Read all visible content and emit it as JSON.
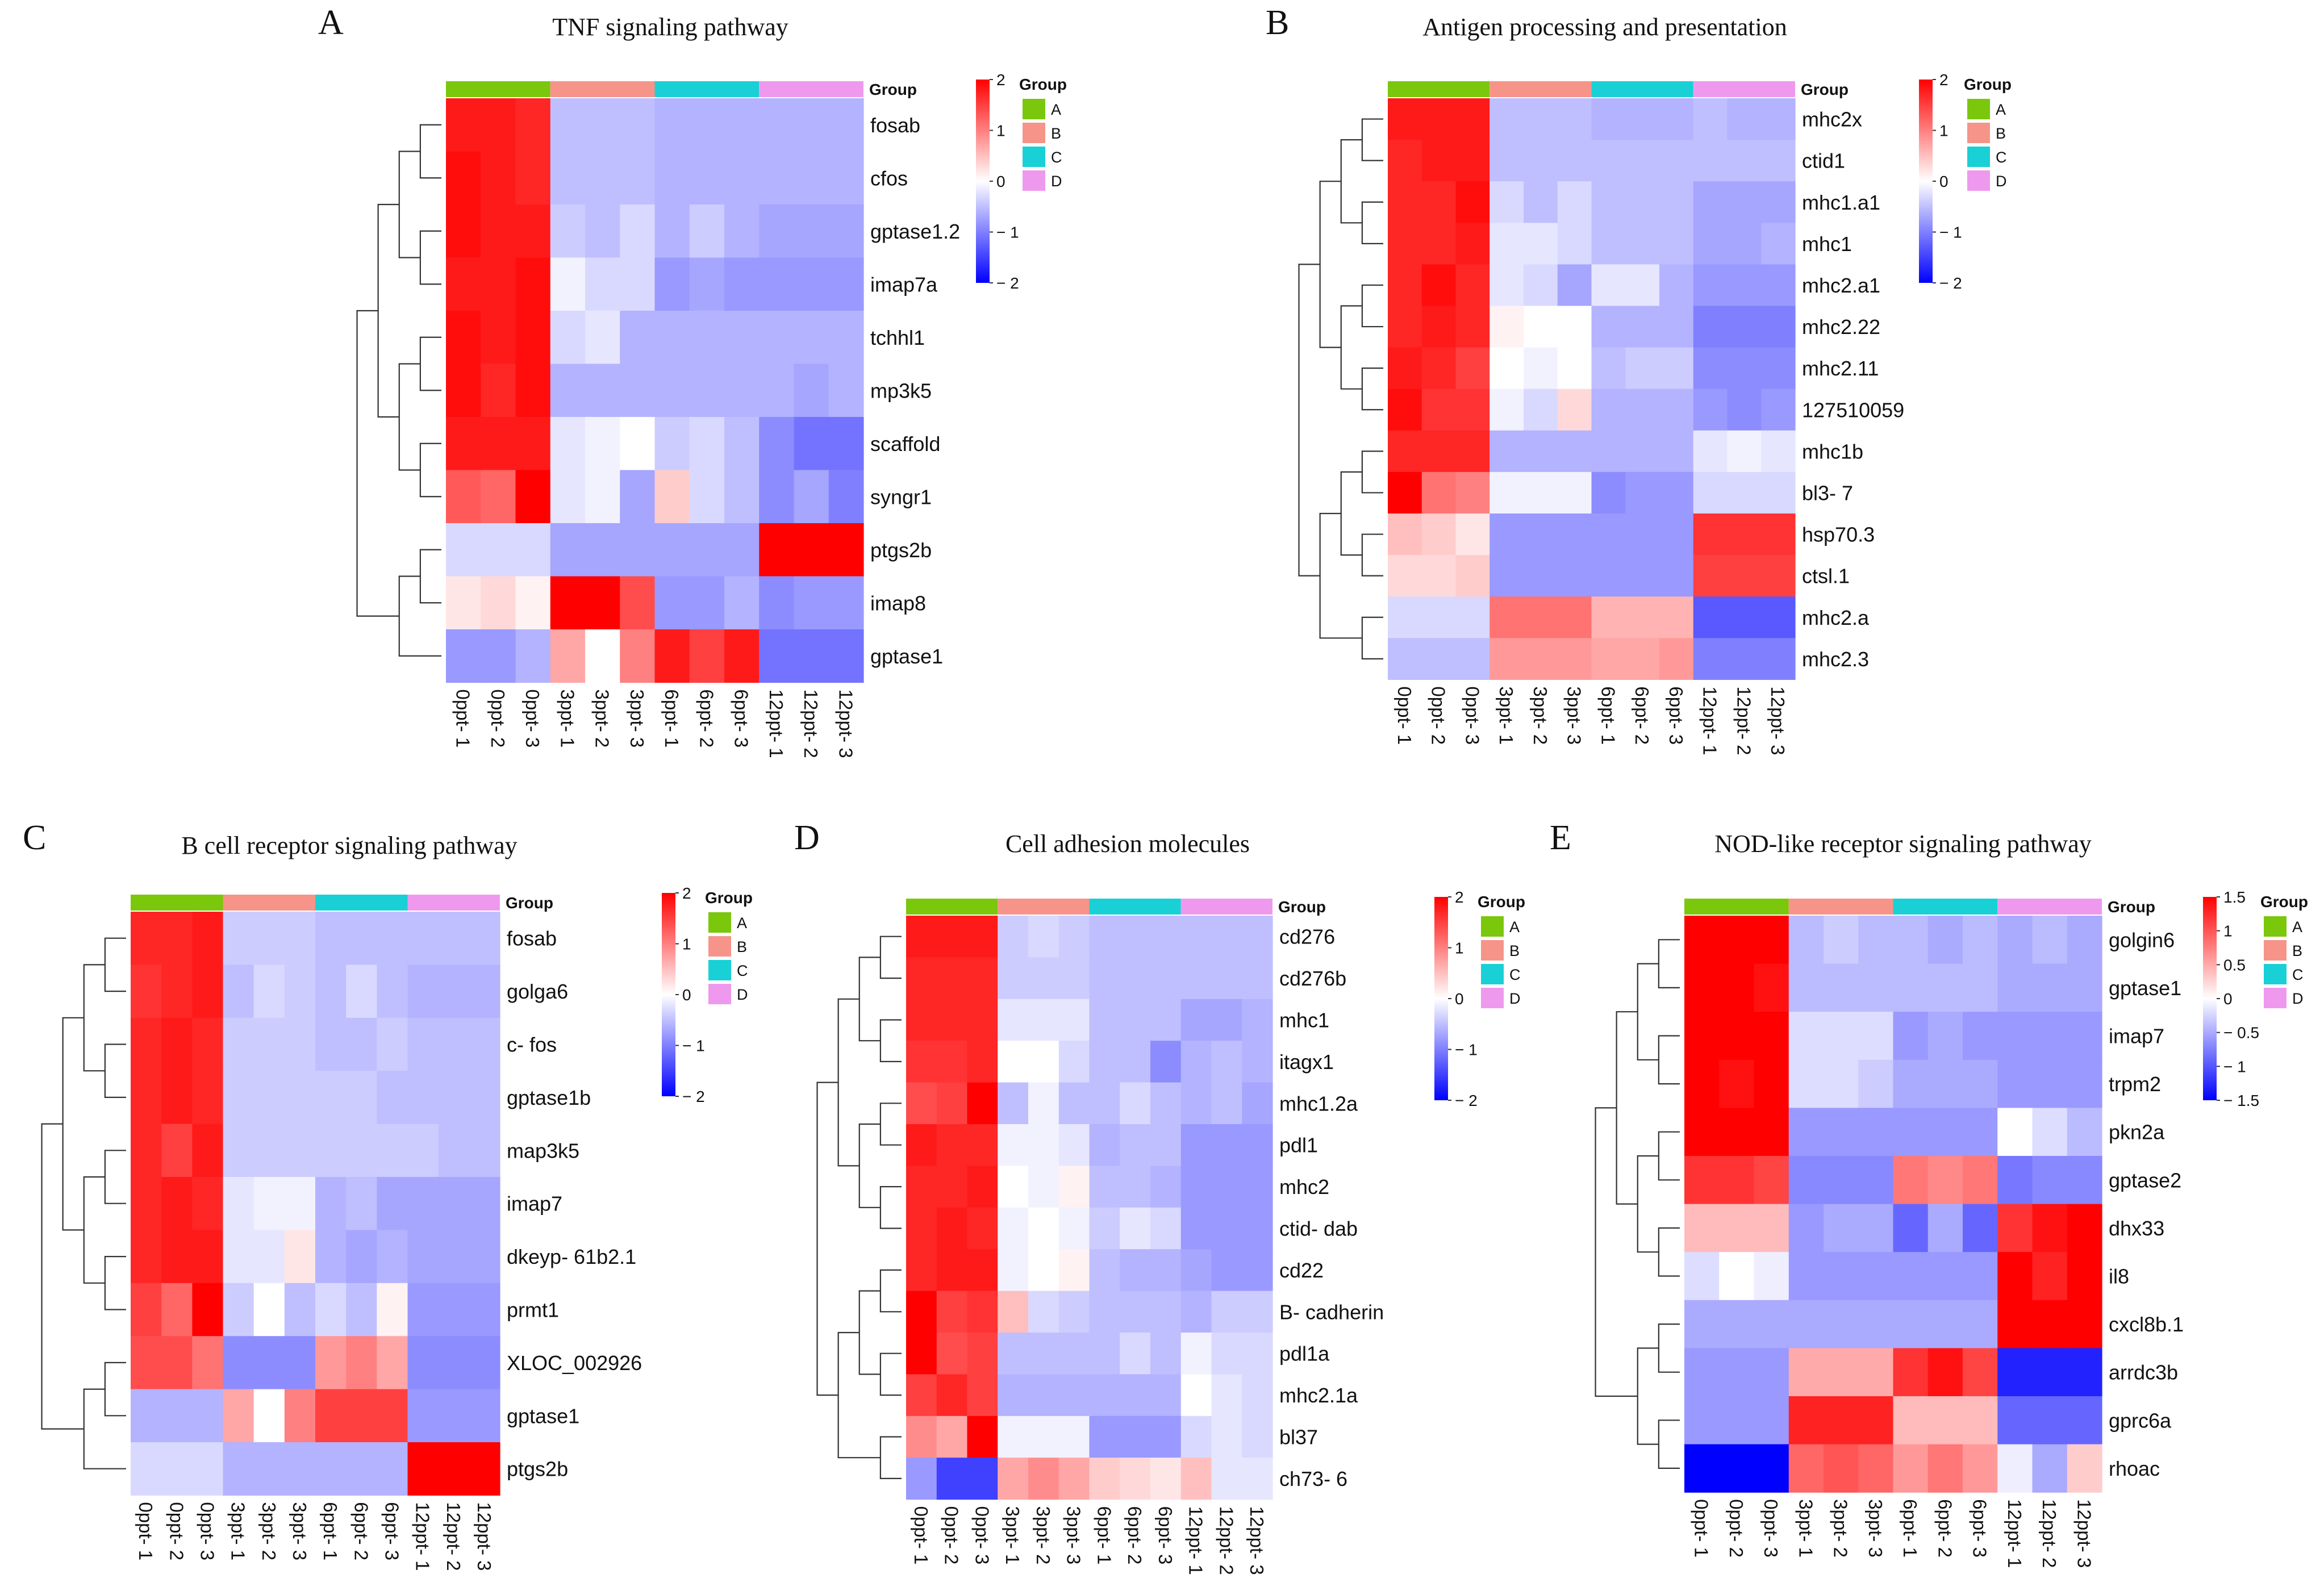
{
  "figure": {
    "samples": [
      "0ppt- 1",
      "0ppt- 2",
      "0ppt- 3",
      "3ppt- 1",
      "3ppt- 2",
      "3ppt- 3",
      "6ppt- 1",
      "6ppt- 2",
      "6ppt- 3",
      "12ppt- 1",
      "12ppt- 2",
      "12ppt- 3"
    ],
    "groups": [
      {
        "label": "A",
        "color": "#7ac70c"
      },
      {
        "label": "B",
        "color": "#f69489"
      },
      {
        "label": "C",
        "color": "#19d0d6"
      },
      {
        "label": "D",
        "color": "#ee99ee"
      }
    ],
    "group_header": "Group",
    "legend_title": "Group",
    "color_scale": {
      "low": "#0000ff",
      "mid": "#ffffff",
      "high": "#ff0000"
    }
  },
  "chart_data": [
    {
      "panel": "A",
      "type": "heatmap",
      "title": "TNF signaling pathway",
      "rows": [
        "fosab",
        "cfos",
        "gptase1.2",
        "imap7a",
        "tchhl1",
        "mp3k5",
        "scaffold",
        "syngr1",
        "ptgs2b",
        "imap8",
        "gptase1"
      ],
      "scale_range": [
        -2,
        2
      ],
      "ticks": [
        2,
        1,
        0,
        -1,
        -2
      ],
      "tick_labels": [
        "2",
        "1",
        "0",
        "− 1",
        "− 2"
      ],
      "values": [
        [
          1.8,
          1.8,
          1.7,
          -0.5,
          -0.5,
          -0.5,
          -0.6,
          -0.6,
          -0.6,
          -0.6,
          -0.6,
          -0.6
        ],
        [
          1.9,
          1.8,
          1.7,
          -0.5,
          -0.5,
          -0.5,
          -0.6,
          -0.6,
          -0.6,
          -0.6,
          -0.6,
          -0.6
        ],
        [
          1.9,
          1.8,
          1.8,
          -0.4,
          -0.5,
          -0.3,
          -0.6,
          -0.4,
          -0.6,
          -0.7,
          -0.7,
          -0.7
        ],
        [
          1.8,
          1.8,
          1.9,
          -0.1,
          -0.3,
          -0.3,
          -0.8,
          -0.7,
          -0.8,
          -0.8,
          -0.8,
          -0.8
        ],
        [
          1.9,
          1.8,
          1.9,
          -0.3,
          -0.2,
          -0.6,
          -0.6,
          -0.6,
          -0.6,
          -0.6,
          -0.6,
          -0.6
        ],
        [
          1.9,
          1.7,
          1.9,
          -0.6,
          -0.6,
          -0.6,
          -0.6,
          -0.6,
          -0.6,
          -0.6,
          -0.7,
          -0.6
        ],
        [
          1.8,
          1.8,
          1.8,
          -0.2,
          -0.1,
          0.0,
          -0.4,
          -0.3,
          -0.5,
          -0.9,
          -1.1,
          -1.1
        ],
        [
          1.3,
          1.2,
          2.2,
          -0.2,
          -0.1,
          -0.7,
          0.4,
          -0.3,
          -0.5,
          -0.9,
          -0.7,
          -1.0
        ],
        [
          -0.3,
          -0.3,
          -0.3,
          -0.7,
          -0.7,
          -0.7,
          -0.7,
          -0.7,
          -0.7,
          2.1,
          2.1,
          2.0
        ],
        [
          0.2,
          0.3,
          0.1,
          2.1,
          2.0,
          1.4,
          -0.8,
          -0.8,
          -0.6,
          -0.9,
          -0.8,
          -0.8
        ],
        [
          -0.8,
          -0.8,
          -0.6,
          0.7,
          0.0,
          1.0,
          1.8,
          1.5,
          1.8,
          -1.1,
          -1.1,
          -1.1
        ]
      ]
    },
    {
      "panel": "B",
      "type": "heatmap",
      "title": "Antigen processing and presentation",
      "rows": [
        "mhc2x",
        "ctid1",
        "mhc1.a1",
        "mhc1",
        "mhc2.a1",
        "mhc2.22",
        "mhc2.11",
        "127510059",
        "mhc1b",
        "bl3- 7",
        "hsp70.3",
        "ctsl.1",
        "mhc2.a",
        "mhc2.3"
      ],
      "scale_range": [
        -2,
        2
      ],
      "ticks": [
        2,
        1,
        0,
        -1,
        -2
      ],
      "tick_labels": [
        "2",
        "1",
        "0",
        "− 1",
        "− 2"
      ],
      "values": [
        [
          1.8,
          1.8,
          1.8,
          -0.5,
          -0.5,
          -0.5,
          -0.6,
          -0.6,
          -0.6,
          -0.5,
          -0.6,
          -0.6
        ],
        [
          1.7,
          1.8,
          1.8,
          -0.5,
          -0.5,
          -0.5,
          -0.5,
          -0.5,
          -0.5,
          -0.5,
          -0.5,
          -0.5
        ],
        [
          1.7,
          1.7,
          1.9,
          -0.3,
          -0.5,
          -0.3,
          -0.5,
          -0.5,
          -0.5,
          -0.7,
          -0.7,
          -0.7
        ],
        [
          1.7,
          1.7,
          1.8,
          -0.2,
          -0.2,
          -0.3,
          -0.5,
          -0.5,
          -0.5,
          -0.7,
          -0.7,
          -0.6
        ],
        [
          1.7,
          1.9,
          1.7,
          -0.2,
          -0.3,
          -0.7,
          -0.2,
          -0.2,
          -0.6,
          -0.8,
          -0.8,
          -0.8
        ],
        [
          1.7,
          1.8,
          1.7,
          0.1,
          0.0,
          0.0,
          -0.6,
          -0.6,
          -0.6,
          -1.0,
          -1.0,
          -1.0
        ],
        [
          1.8,
          1.7,
          1.5,
          0.0,
          -0.1,
          0.0,
          -0.5,
          -0.4,
          -0.4,
          -0.9,
          -0.9,
          -0.9
        ],
        [
          1.9,
          1.6,
          1.6,
          -0.1,
          -0.3,
          0.3,
          -0.6,
          -0.6,
          -0.6,
          -0.8,
          -0.9,
          -0.8
        ],
        [
          1.7,
          1.7,
          1.7,
          -0.6,
          -0.6,
          -0.6,
          -0.6,
          -0.6,
          -0.6,
          -0.2,
          -0.1,
          -0.2
        ],
        [
          2.3,
          1.1,
          1.0,
          -0.1,
          -0.1,
          -0.1,
          -0.9,
          -0.8,
          -0.8,
          -0.3,
          -0.3,
          -0.3
        ],
        [
          0.5,
          0.4,
          0.2,
          -0.8,
          -0.8,
          -0.8,
          -0.8,
          -0.8,
          -0.8,
          1.6,
          1.6,
          1.6
        ],
        [
          0.3,
          0.3,
          0.4,
          -0.8,
          -0.8,
          -0.8,
          -0.8,
          -0.8,
          -0.8,
          1.5,
          1.5,
          1.5
        ],
        [
          -0.3,
          -0.3,
          -0.3,
          1.1,
          1.1,
          1.1,
          0.6,
          0.6,
          0.6,
          -1.3,
          -1.3,
          -1.3
        ],
        [
          -0.5,
          -0.5,
          -0.5,
          0.8,
          0.8,
          0.8,
          0.7,
          0.7,
          0.8,
          -1.0,
          -1.0,
          -1.0
        ]
      ]
    },
    {
      "panel": "C",
      "type": "heatmap",
      "title": "B cell receptor signaling pathway",
      "rows": [
        "fosab",
        "golga6",
        "c- fos",
        "gptase1b",
        "map3k5",
        "imap7",
        "dkeyp- 61b2.1",
        "prmt1",
        "XLOC_002926",
        "gptase1",
        "ptgs2b"
      ],
      "scale_range": [
        -2,
        2
      ],
      "ticks": [
        2,
        1,
        0,
        -1,
        -2
      ],
      "tick_labels": [
        "2",
        "1",
        "0",
        "− 1",
        "− 2"
      ],
      "values": [
        [
          1.7,
          1.7,
          1.8,
          -0.4,
          -0.4,
          -0.4,
          -0.5,
          -0.5,
          -0.5,
          -0.5,
          -0.5,
          -0.5
        ],
        [
          1.6,
          1.7,
          1.8,
          -0.5,
          -0.3,
          -0.4,
          -0.5,
          -0.3,
          -0.5,
          -0.6,
          -0.6,
          -0.6
        ],
        [
          1.7,
          1.8,
          1.7,
          -0.4,
          -0.4,
          -0.4,
          -0.5,
          -0.5,
          -0.4,
          -0.5,
          -0.5,
          -0.5
        ],
        [
          1.7,
          1.8,
          1.7,
          -0.4,
          -0.4,
          -0.4,
          -0.4,
          -0.4,
          -0.5,
          -0.5,
          -0.5,
          -0.5
        ],
        [
          1.7,
          1.5,
          1.8,
          -0.4,
          -0.4,
          -0.4,
          -0.4,
          -0.4,
          -0.4,
          -0.4,
          -0.5,
          -0.5
        ],
        [
          1.7,
          1.8,
          1.7,
          -0.2,
          -0.1,
          -0.1,
          -0.6,
          -0.5,
          -0.7,
          -0.7,
          -0.7,
          -0.7
        ],
        [
          1.7,
          1.8,
          1.8,
          -0.2,
          -0.2,
          0.2,
          -0.6,
          -0.7,
          -0.6,
          -0.7,
          -0.7,
          -0.7
        ],
        [
          1.5,
          1.2,
          2.2,
          -0.4,
          0.0,
          -0.5,
          -0.3,
          -0.5,
          0.1,
          -0.8,
          -0.8,
          -0.8
        ],
        [
          1.4,
          1.4,
          1.1,
          -0.9,
          -0.9,
          -0.9,
          0.8,
          1.0,
          0.7,
          -0.9,
          -0.9,
          -0.9
        ],
        [
          -0.6,
          -0.6,
          -0.6,
          0.7,
          0.0,
          1.0,
          1.5,
          1.5,
          1.5,
          -0.8,
          -0.8,
          -0.8
        ],
        [
          -0.3,
          -0.3,
          -0.3,
          -0.6,
          -0.6,
          -0.6,
          -0.6,
          -0.6,
          -0.6,
          2.1,
          2.1,
          2.0
        ]
      ]
    },
    {
      "panel": "D",
      "type": "heatmap",
      "title": "Cell adhesion molecules",
      "rows": [
        "cd276",
        "cd276b",
        "mhc1",
        "itagx1",
        "mhc1.2a",
        "pdl1",
        "mhc2",
        "ctid- dab",
        "cd22",
        "B- cadherin",
        "pdl1a",
        "mhc2.1a",
        "bl37",
        "ch73- 6"
      ],
      "scale_range": [
        -2,
        2
      ],
      "ticks": [
        2,
        1,
        0,
        -1,
        -2
      ],
      "tick_labels": [
        "2",
        "1",
        "0",
        "− 1",
        "− 2"
      ],
      "values": [
        [
          1.8,
          1.8,
          1.8,
          -0.4,
          -0.3,
          -0.4,
          -0.5,
          -0.5,
          -0.5,
          -0.5,
          -0.5,
          -0.5
        ],
        [
          1.7,
          1.7,
          1.7,
          -0.4,
          -0.4,
          -0.4,
          -0.5,
          -0.5,
          -0.5,
          -0.5,
          -0.5,
          -0.5
        ],
        [
          1.7,
          1.7,
          1.7,
          -0.2,
          -0.2,
          -0.2,
          -0.5,
          -0.5,
          -0.5,
          -0.7,
          -0.7,
          -0.6
        ],
        [
          1.6,
          1.6,
          1.7,
          0.0,
          0.0,
          -0.3,
          -0.5,
          -0.5,
          -0.9,
          -0.6,
          -0.5,
          -0.6
        ],
        [
          1.4,
          1.5,
          2.2,
          -0.5,
          -0.1,
          -0.5,
          -0.5,
          -0.3,
          -0.5,
          -0.6,
          -0.5,
          -0.7
        ],
        [
          1.8,
          1.7,
          1.7,
          -0.1,
          -0.1,
          -0.2,
          -0.6,
          -0.5,
          -0.5,
          -0.8,
          -0.8,
          -0.8
        ],
        [
          1.7,
          1.7,
          1.8,
          0.0,
          -0.1,
          0.1,
          -0.5,
          -0.5,
          -0.6,
          -0.8,
          -0.8,
          -0.8
        ],
        [
          1.7,
          1.8,
          1.7,
          -0.1,
          0.0,
          -0.1,
          -0.4,
          -0.2,
          -0.3,
          -0.8,
          -0.8,
          -0.8
        ],
        [
          1.7,
          1.8,
          1.8,
          -0.1,
          0.0,
          0.1,
          -0.5,
          -0.6,
          -0.6,
          -0.7,
          -0.8,
          -0.8
        ],
        [
          2.0,
          1.5,
          1.6,
          0.5,
          -0.3,
          -0.4,
          -0.5,
          -0.5,
          -0.5,
          -0.6,
          -0.4,
          -0.4
        ],
        [
          2.0,
          1.4,
          1.5,
          -0.5,
          -0.5,
          -0.5,
          -0.5,
          -0.3,
          -0.5,
          -0.1,
          -0.3,
          -0.3
        ],
        [
          1.5,
          1.7,
          1.5,
          -0.6,
          -0.6,
          -0.6,
          -0.6,
          -0.6,
          -0.6,
          0.0,
          -0.2,
          -0.3
        ],
        [
          0.9,
          0.7,
          2.2,
          -0.1,
          -0.1,
          -0.1,
          -0.8,
          -0.8,
          -0.8,
          -0.3,
          -0.2,
          -0.3
        ],
        [
          -0.8,
          -1.5,
          -1.5,
          0.7,
          0.9,
          0.7,
          0.4,
          0.3,
          0.2,
          0.5,
          -0.2,
          -0.2
        ]
      ]
    },
    {
      "panel": "E",
      "type": "heatmap",
      "title": "NOD-like receptor signaling pathway",
      "rows": [
        "golgin6",
        "gptase1",
        "imap7",
        "trpm2",
        "pkn2a",
        "gptase2",
        "dhx33",
        "il8",
        "cxcl8b.1",
        "arrdc3b",
        "gprc6a",
        "rhoac"
      ],
      "scale_range": [
        -1.5,
        1.5
      ],
      "ticks": [
        1.5,
        1,
        0.5,
        0,
        -0.5,
        -1,
        -1.5
      ],
      "tick_labels": [
        "1.5",
        "1",
        "0.5",
        "0",
        "− 0.5",
        "− 1",
        "− 1.5"
      ],
      "values": [
        [
          1.5,
          1.5,
          1.5,
          -0.4,
          -0.3,
          -0.4,
          -0.4,
          -0.5,
          -0.4,
          -0.5,
          -0.4,
          -0.5
        ],
        [
          1.5,
          1.5,
          1.4,
          -0.4,
          -0.4,
          -0.4,
          -0.4,
          -0.4,
          -0.4,
          -0.5,
          -0.5,
          -0.5
        ],
        [
          1.5,
          1.5,
          1.5,
          -0.2,
          -0.2,
          -0.2,
          -0.6,
          -0.5,
          -0.6,
          -0.6,
          -0.6,
          -0.6
        ],
        [
          1.5,
          1.4,
          1.5,
          -0.2,
          -0.2,
          -0.3,
          -0.5,
          -0.5,
          -0.5,
          -0.6,
          -0.6,
          -0.6
        ],
        [
          1.5,
          1.5,
          1.5,
          -0.6,
          -0.6,
          -0.6,
          -0.6,
          -0.6,
          -0.6,
          0.0,
          -0.2,
          -0.4
        ],
        [
          1.2,
          1.2,
          1.1,
          -0.7,
          -0.7,
          -0.7,
          0.8,
          0.7,
          0.8,
          -0.8,
          -0.7,
          -0.7
        ],
        [
          0.4,
          0.4,
          0.4,
          -0.6,
          -0.5,
          -0.5,
          -0.9,
          -0.5,
          -0.9,
          1.2,
          1.4,
          1.5
        ],
        [
          -0.2,
          0.0,
          -0.1,
          -0.6,
          -0.6,
          -0.6,
          -0.6,
          -0.6,
          -0.6,
          1.5,
          1.3,
          1.5
        ],
        [
          -0.5,
          -0.5,
          -0.5,
          -0.5,
          -0.5,
          -0.5,
          -0.5,
          -0.5,
          -0.5,
          1.5,
          1.5,
          1.5
        ],
        [
          -0.6,
          -0.6,
          -0.6,
          0.5,
          0.5,
          0.5,
          1.2,
          1.4,
          1.1,
          -1.3,
          -1.3,
          -1.3
        ],
        [
          -0.6,
          -0.6,
          -0.6,
          1.3,
          1.3,
          1.3,
          0.4,
          0.4,
          0.4,
          -0.9,
          -0.9,
          -0.9
        ],
        [
          -1.6,
          -1.6,
          -1.5,
          0.9,
          1.0,
          0.9,
          0.6,
          0.8,
          0.6,
          -0.1,
          -0.5,
          0.3
        ]
      ]
    }
  ]
}
